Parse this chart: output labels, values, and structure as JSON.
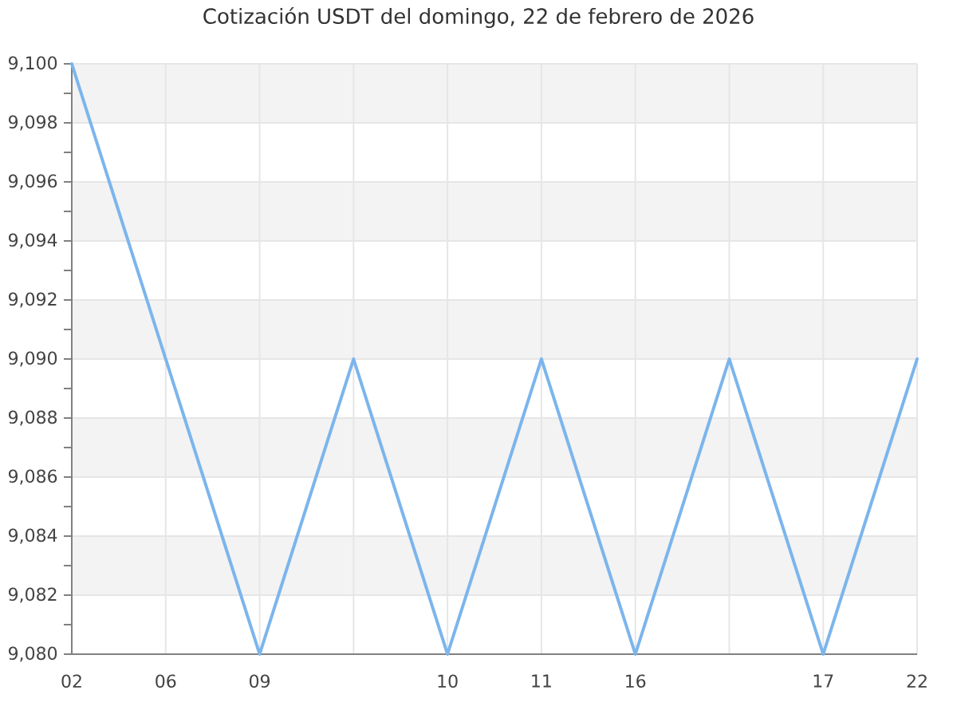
{
  "chart_data": {
    "type": "line",
    "title": "Cotización USDT del domingo, 22 de febrero de 2026",
    "categories": [
      "02",
      "06",
      "09",
      null,
      "10",
      "11",
      "16",
      null,
      "17",
      "22"
    ],
    "values": [
      9100,
      9090,
      9080,
      9090,
      9080,
      9090,
      9080,
      9090,
      9080,
      9090
    ],
    "color": "#7cb5ec",
    "ylim": [
      9080,
      9100
    ],
    "yticks": [
      {
        "value": 9080,
        "label": "9,080"
      },
      {
        "value": 9082,
        "label": "9,082"
      },
      {
        "value": 9084,
        "label": "9,084"
      },
      {
        "value": 9086,
        "label": "9,086"
      },
      {
        "value": 9088,
        "label": "9,088"
      },
      {
        "value": 9090,
        "label": "9,090"
      },
      {
        "value": 9092,
        "label": "9,092"
      },
      {
        "value": 9094,
        "label": "9,094"
      },
      {
        "value": 9096,
        "label": "9,096"
      },
      {
        "value": 9098,
        "label": "9,098"
      },
      {
        "value": 9100,
        "label": "9,100"
      }
    ],
    "grid": true,
    "marker": "none",
    "line_style": "solid"
  }
}
